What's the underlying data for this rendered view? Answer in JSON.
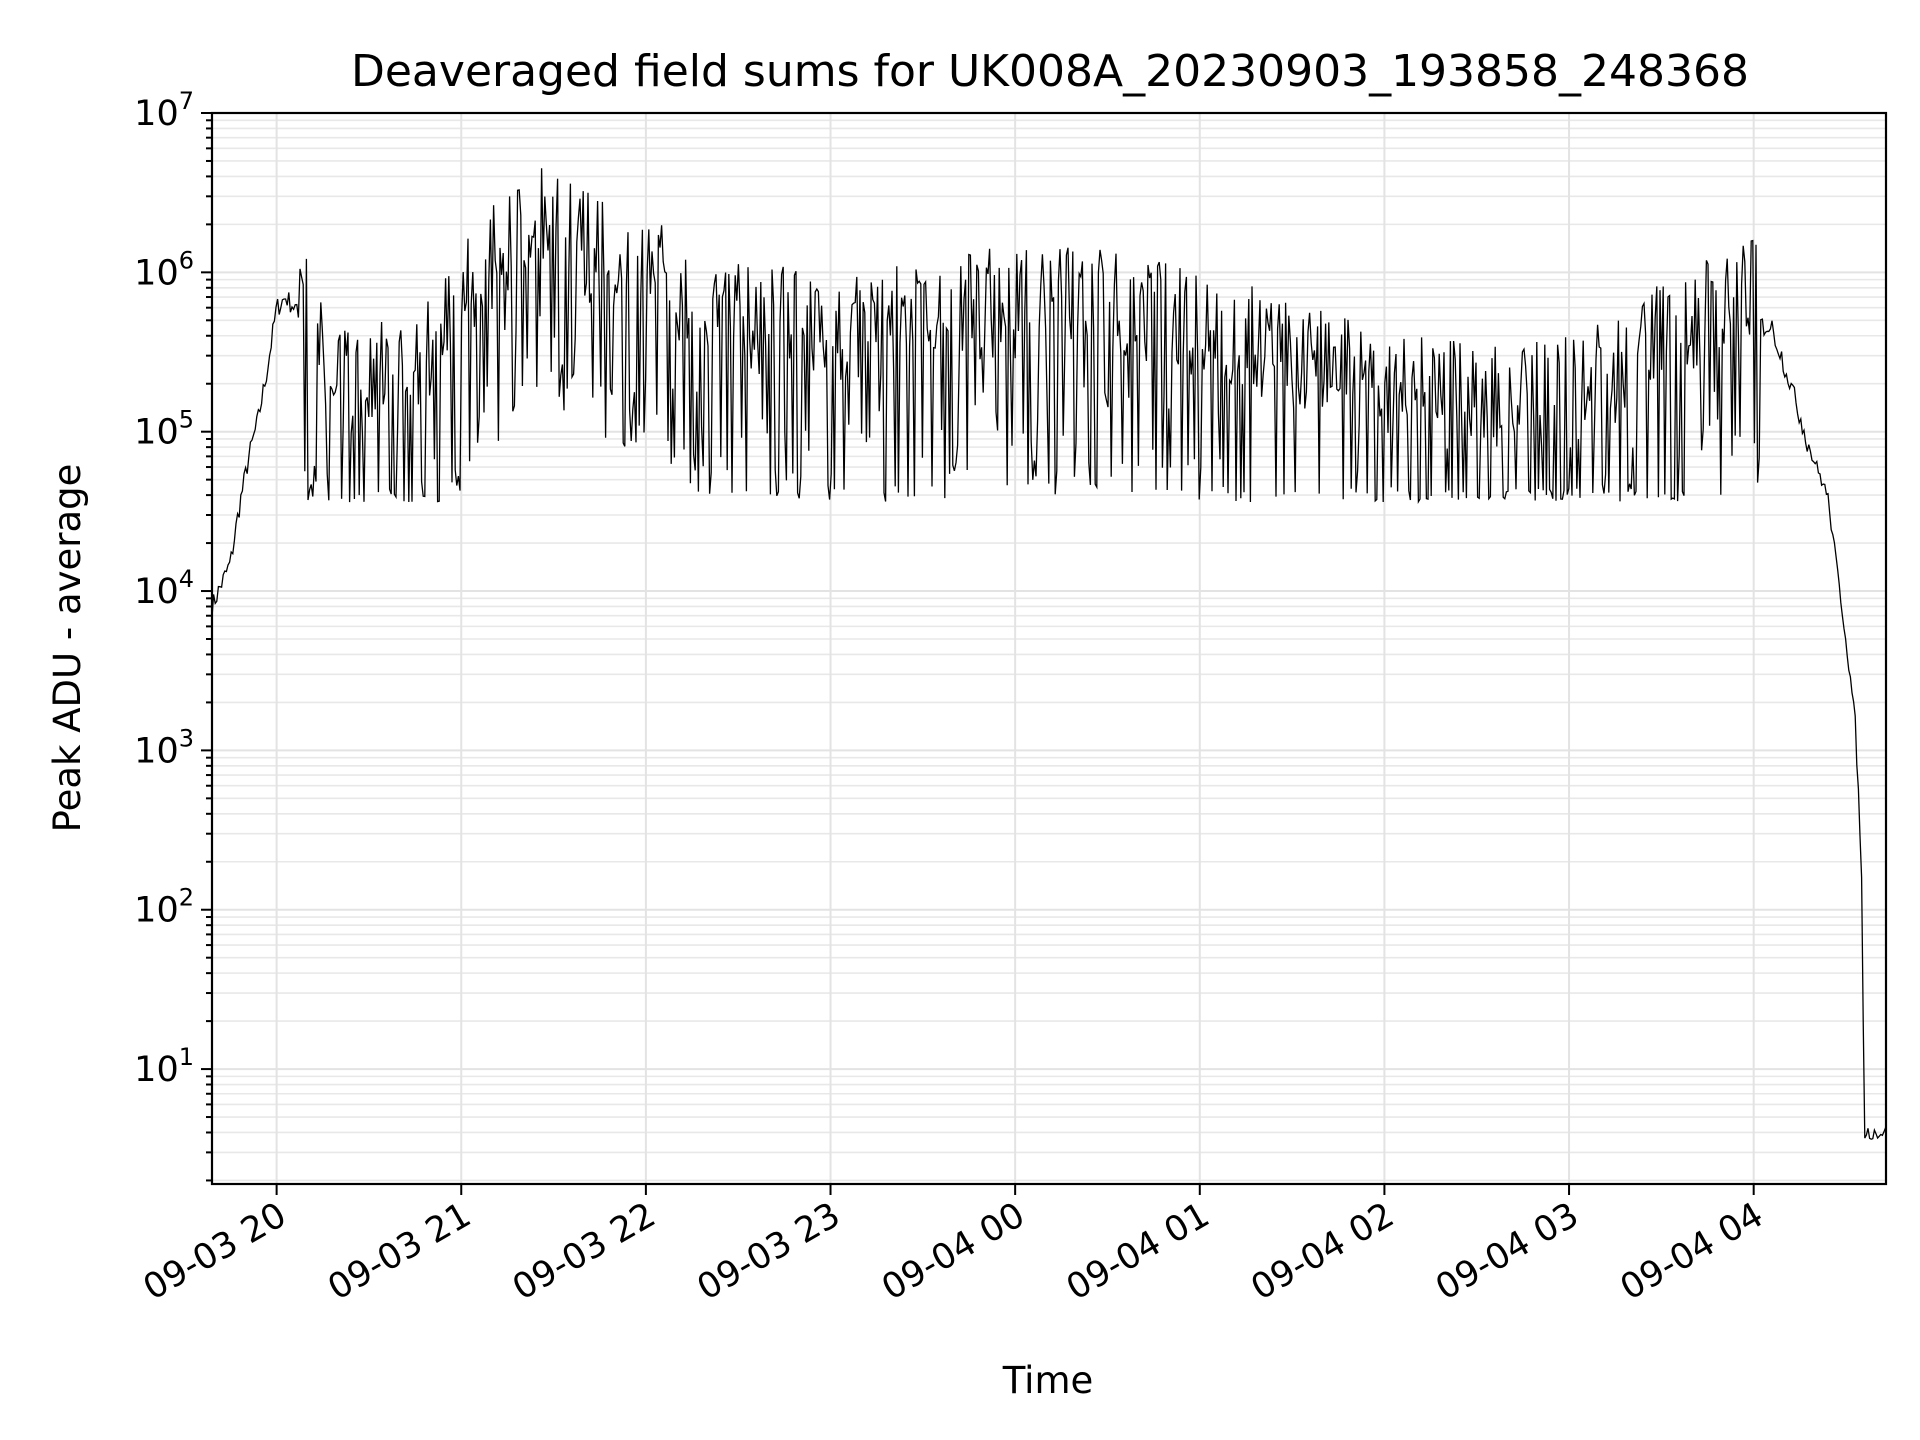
{
  "chart_data": {
    "type": "line",
    "title": "Deaveraged field sums for UK008A_20230903_193858_248368",
    "xlabel": "Time",
    "ylabel": "Peak ADU - average",
    "y_scale": "log",
    "ylim": [
      1.9,
      10000000
    ],
    "xlim": [
      "2023-09-03 19:39",
      "2023-09-04 04:43"
    ],
    "x_tick_labels": [
      "09-03 20",
      "09-03 21",
      "09-03 22",
      "09-03 23",
      "09-04 00",
      "09-04 01",
      "09-04 02",
      "09-04 03",
      "09-04 04"
    ],
    "x_tick_times": [
      "2023-09-03 20:00",
      "2023-09-03 21:00",
      "2023-09-03 22:00",
      "2023-09-03 23:00",
      "2023-09-04 00:00",
      "2023-09-04 01:00",
      "2023-09-04 02:00",
      "2023-09-04 03:00",
      "2023-09-04 04:00"
    ],
    "y_tick_labels": [
      {
        "base": "10",
        "exp": "1",
        "value": 10
      },
      {
        "base": "10",
        "exp": "2",
        "value": 100
      },
      {
        "base": "10",
        "exp": "3",
        "value": 1000
      },
      {
        "base": "10",
        "exp": "4",
        "value": 10000
      },
      {
        "base": "10",
        "exp": "5",
        "value": 100000
      },
      {
        "base": "10",
        "exp": "6",
        "value": 1000000
      },
      {
        "base": "10",
        "exp": "7",
        "value": 10000000
      }
    ],
    "grid": true,
    "line_color": "#000000",
    "grid_color": "#e3e3e3",
    "series": [
      {
        "x": [
          "2023-09-03 19:39",
          "2023-09-03 19:42",
          "2023-09-03 19:45",
          "2023-09-03 19:48",
          "2023-09-03 19:51",
          "2023-09-03 19:54",
          "2023-09-03 19:57",
          "2023-09-03 20:00",
          "2023-09-03 20:03",
          "2023-09-03 20:06",
          "2023-09-03 20:09",
          "2023-09-03 20:12",
          "2023-09-03 20:18",
          "2023-09-03 20:24",
          "2023-09-03 20:30",
          "2023-09-03 20:36",
          "2023-09-03 20:42",
          "2023-09-03 20:48",
          "2023-09-03 20:54",
          "2023-09-03 21:00",
          "2023-09-03 21:06",
          "2023-09-03 21:12",
          "2023-09-03 21:18",
          "2023-09-03 21:24",
          "2023-09-03 21:30",
          "2023-09-03 21:36",
          "2023-09-03 21:42",
          "2023-09-03 21:48",
          "2023-09-03 21:54",
          "2023-09-03 22:00",
          "2023-09-03 22:06",
          "2023-09-03 22:12",
          "2023-09-03 22:18",
          "2023-09-03 22:30",
          "2023-09-03 22:45",
          "2023-09-03 23:00",
          "2023-09-03 23:15",
          "2023-09-03 23:30",
          "2023-09-03 23:45",
          "2023-09-04 00:00",
          "2023-09-04 00:15",
          "2023-09-04 00:30",
          "2023-09-04 00:45",
          "2023-09-04 01:00",
          "2023-09-04 01:15",
          "2023-09-04 01:30",
          "2023-09-04 01:45",
          "2023-09-04 02:00",
          "2023-09-04 02:15",
          "2023-09-04 02:30",
          "2023-09-04 02:45",
          "2023-09-04 03:00",
          "2023-09-04 03:15",
          "2023-09-04 03:30",
          "2023-09-04 03:45",
          "2023-09-04 04:00",
          "2023-09-04 04:06",
          "2023-09-04 04:12",
          "2023-09-04 04:18",
          "2023-09-04 04:24",
          "2023-09-04 04:30",
          "2023-09-04 04:33",
          "2023-09-04 04:35",
          "2023-09-04 04:36",
          "2023-09-04 04:37",
          "2023-09-04 04:43"
        ],
        "values": [
          8000,
          11000,
          15000,
          35000,
          70000,
          120000,
          250000,
          600000,
          700000,
          600000,
          400000,
          250000,
          150000,
          120000,
          130000,
          140000,
          150000,
          200000,
          250000,
          400000,
          700000,
          800000,
          1200000,
          1800000,
          1500000,
          1200000,
          900000,
          800000,
          700000,
          700000,
          600000,
          500000,
          400000,
          350000,
          300000,
          300000,
          300000,
          350000,
          400000,
          400000,
          400000,
          400000,
          350000,
          300000,
          250000,
          200000,
          150000,
          120000,
          110000,
          100000,
          100000,
          110000,
          150000,
          250000,
          350000,
          480000,
          450000,
          200000,
          80000,
          40000,
          5000,
          1500,
          200,
          4,
          4,
          4
        ]
      }
    ]
  }
}
